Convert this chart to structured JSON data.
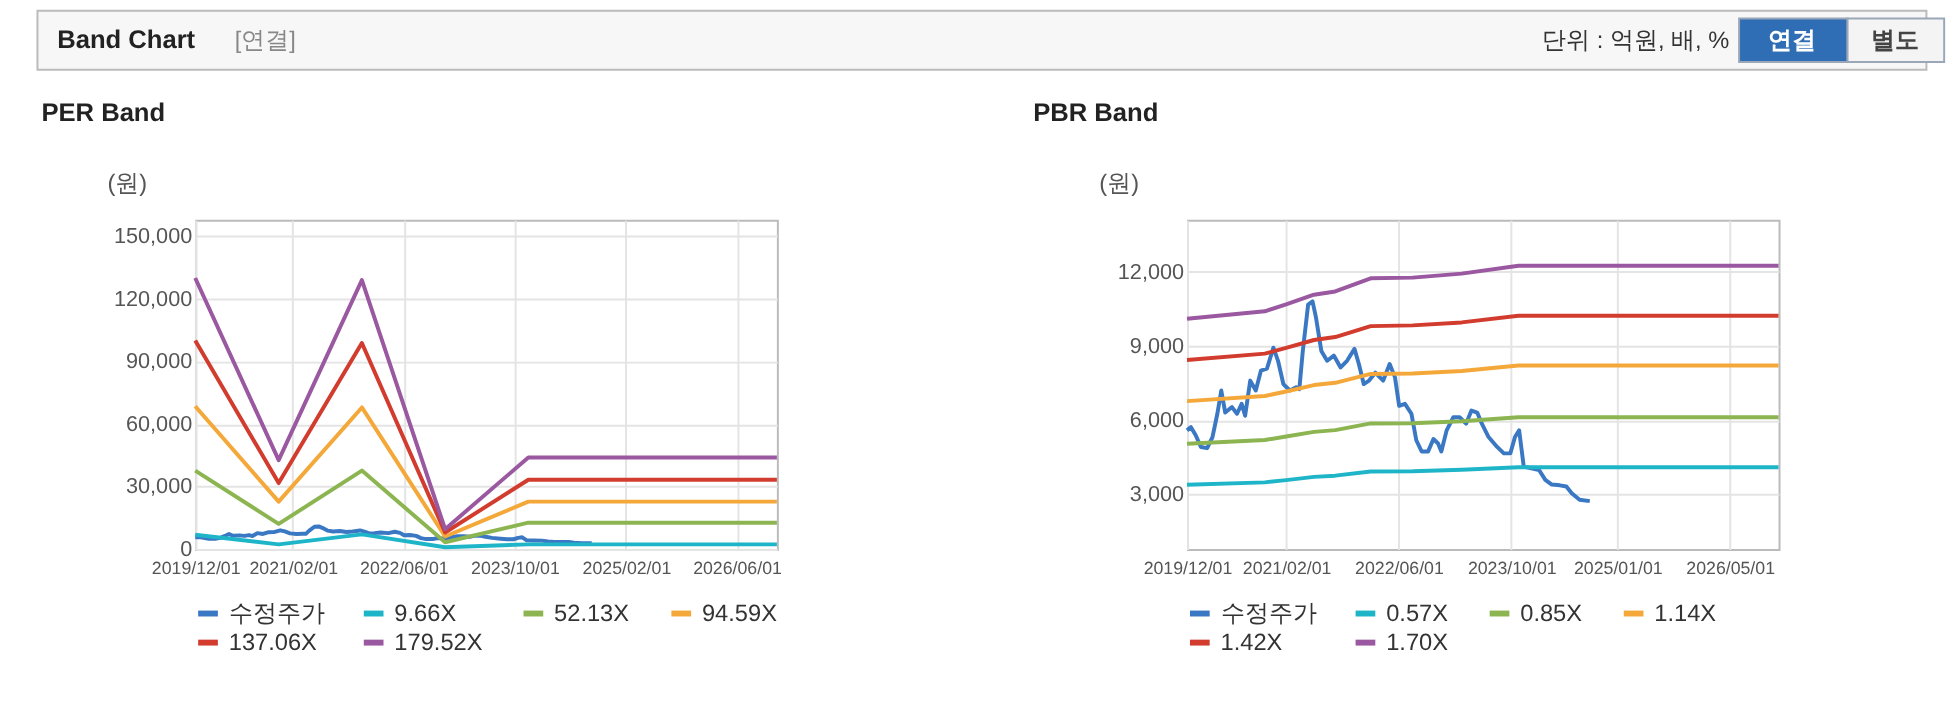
{
  "chart_data": [
    {
      "type": "other",
      "title": "Band Chart",
      "annotations": [
        "[연결]",
        "단위 : 억원, 배, %",
        "연결",
        "별도"
      ]
    },
    {
      "type": "line",
      "title": "PER Band",
      "ylabel": "(원)",
      "xlim": [
        "2019-12-01",
        "2026-11-25"
      ],
      "ylim": [
        0,
        158000
      ],
      "yticks": [
        0,
        {
          "value": 30000,
          "label": "30,000"
        },
        {
          "value": 60000,
          "label": "60,000"
        },
        {
          "value": 90000,
          "label": "90,000"
        },
        {
          "value": 120000,
          "label": "120,000"
        },
        {
          "value": 150000,
          "label": "150,000"
        }
      ],
      "xticks": [
        {
          "value": "2019-12-01",
          "label": "2019/12/01"
        },
        {
          "value": "2021-02-01",
          "label": "2021/02/01"
        },
        {
          "value": "2022-06-01",
          "label": "2022/06/01"
        },
        {
          "value": "2023-10-01",
          "label": "2023/10/01"
        },
        {
          "value": "2025-02-01",
          "label": "2025/02/01"
        },
        {
          "value": "2026-06-01",
          "label": "2026/06/01"
        }
      ],
      "grid": true,
      "legend": "bottom",
      "marker": "none",
      "line_style": "solid",
      "series": [
        {
          "name": "수정주가",
          "color": "#3a78c3",
          "x": [
            "2019-12-01",
            "2019-12-18",
            "2020-01-07",
            "2020-01-30",
            "2020-02-26",
            "2020-03-20",
            "2020-04-10",
            "2020-04-27",
            "2020-05-14",
            "2020-06-12",
            "2020-07-04",
            "2020-07-24",
            "2020-08-08",
            "2020-08-30",
            "2020-09-23",
            "2020-10-15",
            "2020-11-10",
            "2020-12-08",
            "2020-12-28",
            "2021-01-20",
            "2021-02-17",
            "2021-03-16",
            "2021-03-30",
            "2021-04-14",
            "2021-05-07",
            "2021-05-26",
            "2021-06-10",
            "2021-07-03",
            "2021-07-28",
            "2021-08-26",
            "2021-09-24",
            "2021-10-22",
            "2021-11-23",
            "2021-12-12",
            "2022-01-02",
            "2022-01-25",
            "2022-02-21",
            "2022-03-27",
            "2022-04-24",
            "2022-05-17",
            "2022-06-04",
            "2022-06-29",
            "2022-07-27",
            "2022-08-17",
            "2022-09-09",
            "2022-10-07",
            "2022-10-30",
            "2022-11-19",
            "2022-12-03",
            "2022-12-26",
            "2023-01-24",
            "2023-02-20",
            "2023-03-20",
            "2023-04-12",
            "2023-05-07",
            "2023-05-27",
            "2023-06-25",
            "2023-08-01",
            "2023-08-30",
            "2023-09-27",
            "2023-10-17",
            "2023-11-04",
            "2023-11-24",
            "2023-12-22",
            "2024-01-29",
            "2024-02-25",
            "2024-03-24",
            "2024-04-28",
            "2024-05-26",
            "2024-06-18",
            "2024-07-22",
            "2024-09-04"
          ],
          "values": [
            5590,
            5720,
            5400,
            4920,
            4870,
            5320,
            6260,
            7200,
            6310,
            6530,
            6260,
            6660,
            6180,
            7600,
            7200,
            8000,
            8080,
            8930,
            8400,
            7460,
            7200,
            7330,
            7250,
            8800,
            10670,
            10800,
            10140,
            8800,
            8400,
            8610,
            8130,
            8400,
            8880,
            8270,
            7460,
            7600,
            7920,
            7600,
            8270,
            7730,
            6580,
            6660,
            6260,
            5190,
            4740,
            4740,
            5240,
            5060,
            4740,
            5590,
            6120,
            6120,
            5860,
            6390,
            6310,
            5860,
            5320,
            4920,
            4660,
            4660,
            5320,
            5590,
            4120,
            4070,
            3990,
            3590,
            3400,
            3370,
            3320,
            3050,
            2790,
            2730
          ]
        },
        {
          "name": "9.66X",
          "color": "#1fb5c8",
          "x": [
            "2019-12-01",
            "2020-12-01",
            "2021-12-01",
            "2022-12-01",
            "2023-12-01",
            "2026-11-25"
          ],
          "values": [
            6800,
            2200,
            7000,
            800,
            2200,
            2200
          ]
        },
        {
          "name": "52.13X",
          "color": "#8cb552",
          "x": [
            "2019-12-01",
            "2020-12-01",
            "2021-12-01",
            "2022-12-01",
            "2023-12-01",
            "2026-11-25"
          ],
          "values": [
            37600,
            12000,
            37600,
            3200,
            12600,
            12600
          ]
        },
        {
          "name": "94.59X",
          "color": "#f5a83a",
          "x": [
            "2019-12-01",
            "2020-12-01",
            "2021-12-01",
            "2022-12-01",
            "2023-12-01",
            "2026-11-25"
          ],
          "values": [
            68500,
            22700,
            67900,
            6000,
            22700,
            22700
          ]
        },
        {
          "name": "137.06X",
          "color": "#d23c2e",
          "x": [
            "2019-12-01",
            "2020-12-01",
            "2021-12-01",
            "2022-12-01",
            "2023-12-01",
            "2026-11-25"
          ],
          "values": [
            100000,
            31600,
            98800,
            7900,
            33200,
            33200
          ]
        },
        {
          "name": "179.52X",
          "color": "#9a58a0",
          "x": [
            "2019-12-01",
            "2020-12-01",
            "2021-12-01",
            "2022-12-01",
            "2023-12-01",
            "2026-11-25"
          ],
          "values": [
            130000,
            42600,
            129000,
            9500,
            43900,
            43900
          ]
        }
      ]
    },
    {
      "type": "line",
      "title": "PBR Band",
      "ylabel": "(원)",
      "xlim": [
        "2019-12-01",
        "2026-11-28"
      ],
      "ylim": [
        800,
        14100
      ],
      "yticks": [
        {
          "value": 3000,
          "label": "3,000"
        },
        {
          "value": 6000,
          "label": "6,000"
        },
        {
          "value": 9000,
          "label": "9,000"
        },
        {
          "value": 12000,
          "label": "12,000"
        }
      ],
      "xticks": [
        {
          "value": "2019-12-01",
          "label": "2019/12/01"
        },
        {
          "value": "2021-02-01",
          "label": "2021/02/01"
        },
        {
          "value": "2022-06-01",
          "label": "2022/06/01"
        },
        {
          "value": "2023-10-01",
          "label": "2023/10/01"
        },
        {
          "value": "2025-01-01",
          "label": "2025/01/01"
        },
        {
          "value": "2026-05-01",
          "label": "2026/05/01"
        }
      ],
      "grid": true,
      "legend": "bottom",
      "marker": "none",
      "line_style": "solid",
      "series": [
        {
          "name": "수정주가",
          "color": "#3a78c3",
          "x": [
            "2019-12-01",
            "2019-12-18",
            "2020-01-07",
            "2020-01-30",
            "2020-02-26",
            "2020-03-20",
            "2020-04-10",
            "2020-04-27",
            "2020-05-14",
            "2020-06-12",
            "2020-07-04",
            "2020-07-24",
            "2020-08-08",
            "2020-08-30",
            "2020-09-23",
            "2020-10-15",
            "2020-11-10",
            "2020-12-08",
            "2020-12-28",
            "2021-01-20",
            "2021-02-17",
            "2021-03-16",
            "2021-03-30",
            "2021-04-14",
            "2021-05-07",
            "2021-05-26",
            "2021-06-10",
            "2021-07-03",
            "2021-07-28",
            "2021-08-26",
            "2021-09-24",
            "2021-10-22",
            "2021-11-23",
            "2021-12-12",
            "2022-01-02",
            "2022-01-25",
            "2022-02-21",
            "2022-03-27",
            "2022-04-24",
            "2022-05-17",
            "2022-06-04",
            "2022-06-29",
            "2022-07-27",
            "2022-08-17",
            "2022-09-09",
            "2022-10-07",
            "2022-10-30",
            "2022-11-19",
            "2022-12-03",
            "2022-12-26",
            "2023-01-24",
            "2023-02-20",
            "2023-03-20",
            "2023-04-12",
            "2023-05-07",
            "2023-05-27",
            "2023-06-25",
            "2023-08-01",
            "2023-08-30",
            "2023-09-27",
            "2023-10-17",
            "2023-11-04",
            "2023-11-24",
            "2023-12-22",
            "2024-01-29",
            "2024-02-25",
            "2024-03-24",
            "2024-04-28",
            "2024-05-26",
            "2024-06-18",
            "2024-07-22",
            "2024-09-04"
          ],
          "values": [
            5590,
            5720,
            5400,
            4920,
            4870,
            5320,
            6260,
            7200,
            6310,
            6530,
            6260,
            6660,
            6180,
            7600,
            7200,
            8000,
            8080,
            8930,
            8400,
            7460,
            7200,
            7330,
            7250,
            8800,
            10670,
            10800,
            10140,
            8800,
            8400,
            8610,
            8130,
            8400,
            8880,
            8270,
            7460,
            7600,
            7920,
            7600,
            8270,
            7730,
            6580,
            6660,
            6260,
            5190,
            4740,
            4740,
            5240,
            5060,
            4740,
            5590,
            6120,
            6120,
            5860,
            6390,
            6310,
            5860,
            5320,
            4920,
            4660,
            4660,
            5320,
            5590,
            4120,
            4070,
            3990,
            3590,
            3400,
            3370,
            3320,
            3050,
            2790,
            2730
          ]
        },
        {
          "name": "0.57X",
          "color": "#1fb5c8",
          "x": [
            "2019-12-01",
            "2020-11-01",
            "2021-02-01",
            "2021-06-01",
            "2021-09-01",
            "2022-02-01",
            "2022-08-01",
            "2023-03-01",
            "2023-11-01",
            "2026-11-28"
          ],
          "values": [
            3390,
            3490,
            3580,
            3710,
            3760,
            3930,
            3940,
            4000,
            4100,
            4100
          ]
        },
        {
          "name": "0.85X",
          "color": "#8cb552",
          "x": [
            "2019-12-01",
            "2020-11-01",
            "2021-02-01",
            "2021-06-01",
            "2021-09-01",
            "2022-02-01",
            "2022-08-01",
            "2023-03-01",
            "2023-11-01",
            "2026-11-28"
          ],
          "values": [
            5050,
            5200,
            5340,
            5530,
            5600,
            5870,
            5880,
            5960,
            6120,
            6120
          ]
        },
        {
          "name": "1.14X",
          "color": "#f5a83a",
          "x": [
            "2019-12-01",
            "2020-11-01",
            "2021-02-01",
            "2021-06-01",
            "2021-09-01",
            "2022-02-01",
            "2022-08-01",
            "2023-03-01",
            "2023-11-01",
            "2026-11-28"
          ],
          "values": [
            6770,
            6980,
            7160,
            7420,
            7510,
            7870,
            7890,
            7990,
            8210,
            8210
          ]
        },
        {
          "name": "1.42X",
          "color": "#d23c2e",
          "x": [
            "2019-12-01",
            "2020-11-01",
            "2021-02-01",
            "2021-06-01",
            "2021-09-01",
            "2022-02-01",
            "2022-08-01",
            "2023-03-01",
            "2023-11-01",
            "2026-11-28"
          ],
          "values": [
            8430,
            8690,
            8920,
            9240,
            9360,
            9800,
            9830,
            9950,
            10220,
            10220
          ]
        },
        {
          "name": "1.70X",
          "color": "#9a58a0",
          "x": [
            "2019-12-01",
            "2020-11-01",
            "2021-02-01",
            "2021-06-01",
            "2021-09-01",
            "2022-02-01",
            "2022-08-01",
            "2023-03-01",
            "2023-11-01",
            "2026-11-28"
          ],
          "values": [
            10100,
            10400,
            10680,
            11070,
            11200,
            11730,
            11760,
            11920,
            12240,
            12240
          ]
        }
      ]
    }
  ]
}
